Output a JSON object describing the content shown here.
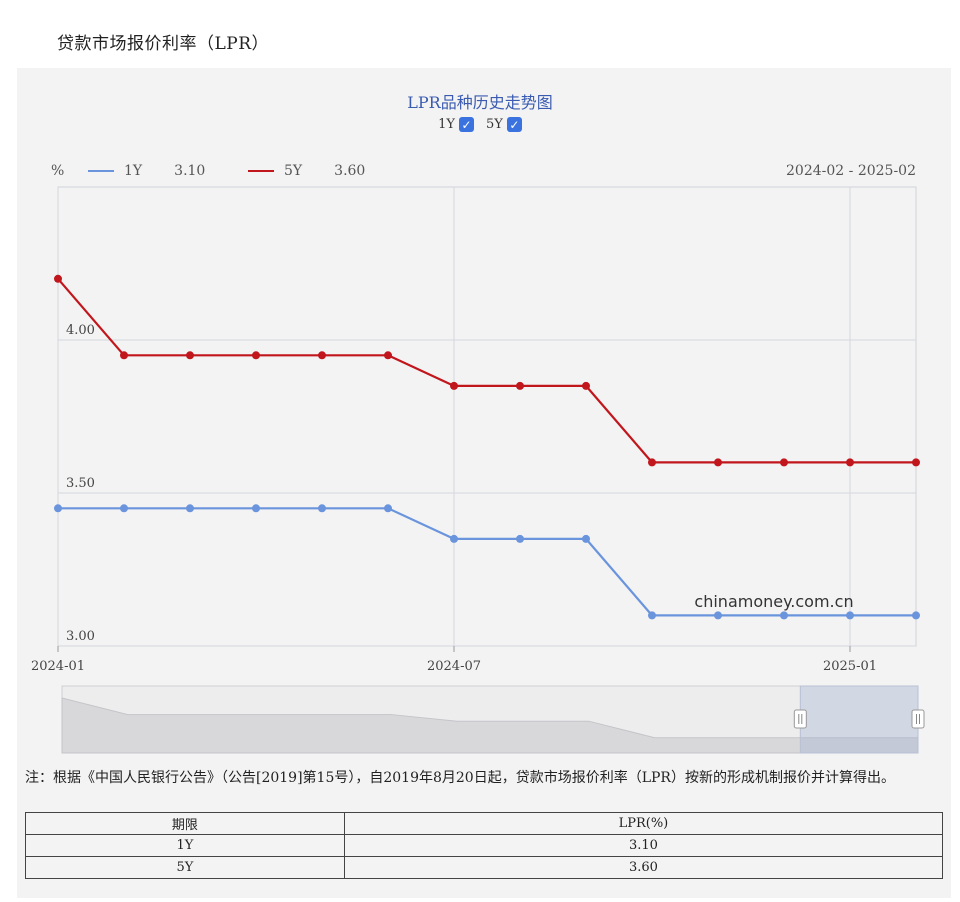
{
  "page_title": "贷款市场报价利率（LPR）",
  "toggles": [
    {
      "label": "1Y",
      "checked": true
    },
    {
      "label": "5Y",
      "checked": true
    }
  ],
  "legend": {
    "unit": "%",
    "items": [
      {
        "name": "1Y",
        "value": "3.10",
        "color": "#6a94dc"
      },
      {
        "name": "5Y",
        "value": "3.60",
        "color": "#c1161c"
      }
    ],
    "date_range": "2024-02 - 2025-02"
  },
  "watermark": "chinamoney.com.cn",
  "chart_data": {
    "type": "line",
    "title": "LPR品种历史走势图",
    "x": [
      "2024-01",
      "2024-02",
      "2024-03",
      "2024-04",
      "2024-05",
      "2024-06",
      "2024-07",
      "2024-08",
      "2024-09",
      "2024-10",
      "2024-11",
      "2024-12",
      "2025-01",
      "2025-02"
    ],
    "x_tick_labels": [
      "2024-01",
      "2024-07",
      "2025-01"
    ],
    "y_tick_labels": [
      "3.00",
      "3.50",
      "4.00"
    ],
    "ylim": [
      3.0,
      4.5
    ],
    "grid": true,
    "legend_position": "top-left",
    "series": [
      {
        "name": "1Y",
        "color": "#6a94dc",
        "values": [
          3.45,
          3.45,
          3.45,
          3.45,
          3.45,
          3.45,
          3.35,
          3.35,
          3.35,
          3.1,
          3.1,
          3.1,
          3.1,
          3.1
        ]
      },
      {
        "name": "5Y",
        "color": "#c1161c",
        "values": [
          4.2,
          3.95,
          3.95,
          3.95,
          3.95,
          3.95,
          3.85,
          3.85,
          3.85,
          3.6,
          3.6,
          3.6,
          3.6,
          3.6
        ]
      }
    ]
  },
  "note": "注：根据《中国人民银行公告》（公告[2019]第15号），自2019年8月20日起，贷款市场报价利率（LPR）按新的形成机制报价并计算得出。",
  "table": {
    "headers": [
      "期限",
      "LPR(%)"
    ],
    "rows": [
      [
        "1Y",
        "3.10"
      ],
      [
        "5Y",
        "3.60"
      ]
    ]
  }
}
